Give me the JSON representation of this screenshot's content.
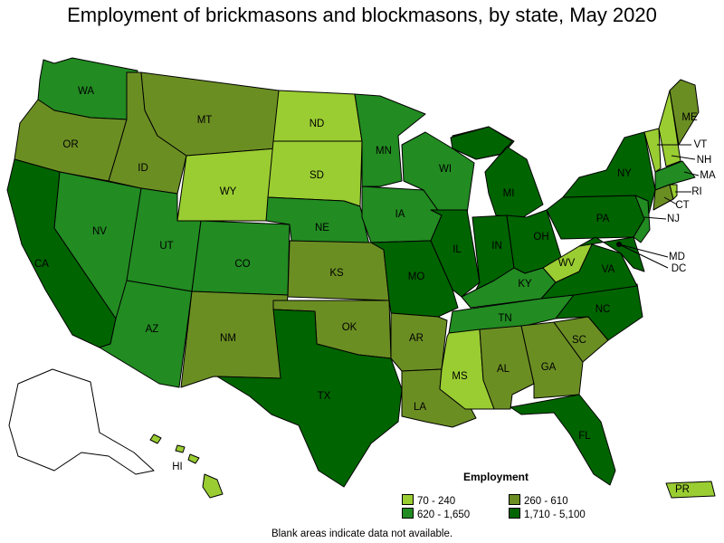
{
  "title": "Employment of brickmasons and blockmasons, by state, May 2020",
  "legend": {
    "title": "Employment",
    "items": [
      {
        "label": "70 - 240",
        "color": "#9acd32"
      },
      {
        "label": "260 - 610",
        "color": "#6b8e23"
      },
      {
        "label": "620 - 1,650",
        "color": "#228b22"
      },
      {
        "label": "1,710 - 5,100",
        "color": "#006400"
      }
    ]
  },
  "note": "Blank areas indicate data not available.",
  "states": {
    "WA": "WA",
    "OR": "OR",
    "CA": "CA",
    "NV": "NV",
    "ID": "ID",
    "MT": "MT",
    "WY": "WY",
    "UT": "UT",
    "AZ": "AZ",
    "CO": "CO",
    "NM": "NM",
    "ND": "ND",
    "SD": "SD",
    "NE": "NE",
    "KS": "KS",
    "OK": "OK",
    "TX": "TX",
    "MN": "MN",
    "IA": "IA",
    "MO": "MO",
    "AR": "AR",
    "LA": "LA",
    "WI": "WI",
    "IL": "IL",
    "MI": "MI",
    "IN": "IN",
    "OH": "OH",
    "KY": "KY",
    "TN": "TN",
    "MS": "MS",
    "AL": "AL",
    "GA": "GA",
    "FL": "FL",
    "SC": "SC",
    "NC": "NC",
    "VA": "VA",
    "WV": "WV",
    "PA": "PA",
    "NY": "NY",
    "ME": "ME",
    "VT": "VT",
    "NH": "NH",
    "MA": "MA",
    "RI": "RI",
    "CT": "CT",
    "NJ": "NJ",
    "MD": "MD",
    "DC": "DC",
    "HI": "HI",
    "PR": "PR"
  }
}
